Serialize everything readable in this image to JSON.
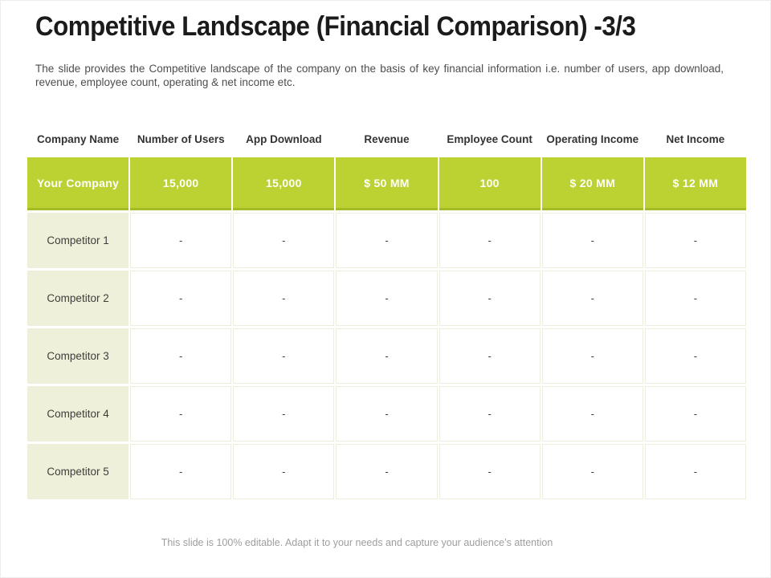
{
  "slide": {
    "title": "Competitive Landscape (Financial Comparison) -3/3",
    "subtitle": "The slide provides the Competitive landscape of the company on the basis of key financial information i.e. number of users, app download, revenue, employee count, operating & net income etc.",
    "footer": "This slide is 100% editable. Adapt it to your needs and capture your audience’s attention"
  },
  "colors": {
    "accent_green": "#BCD232",
    "accent_green_dark": "#A6BA28",
    "row_label_bg": "#EFF0DA",
    "cell_border": "#EDEFDC",
    "header_text": "#333333",
    "value_text_on_green": "#FFFFFF"
  },
  "table": {
    "headers": [
      "Company Name",
      "Number of Users",
      "App Download",
      "Revenue",
      "Employee Count",
      "Operating Income",
      "Net Income"
    ],
    "your_company": {
      "name": "Your Company",
      "values": [
        "15,000",
        "15,000",
        "$ 50 MM",
        "100",
        "$ 20 MM",
        "$ 12 MM"
      ]
    },
    "competitors": [
      {
        "name": "Competitor 1",
        "values": [
          "-",
          "-",
          "-",
          "-",
          "-",
          "-"
        ]
      },
      {
        "name": "Competitor 2",
        "values": [
          "-",
          "-",
          "-",
          "-",
          "-",
          "-"
        ]
      },
      {
        "name": "Competitor 3",
        "values": [
          "-",
          "-",
          "-",
          "-",
          "-",
          "-"
        ]
      },
      {
        "name": "Competitor 4",
        "values": [
          "-",
          "-",
          "-",
          "-",
          "-",
          "-"
        ]
      },
      {
        "name": "Competitor 5",
        "values": [
          "-",
          "-",
          "-",
          "-",
          "-",
          "-"
        ]
      }
    ]
  }
}
